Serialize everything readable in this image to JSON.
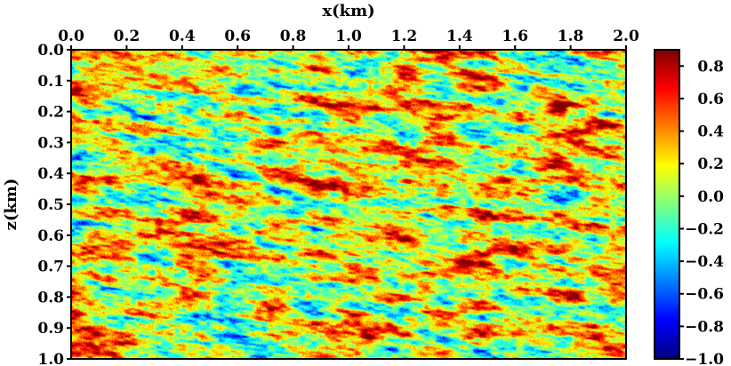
{
  "chart_data": {
    "type": "heatmap",
    "title": "",
    "xlabel": "x(km)",
    "ylabel": "z(km)",
    "x_axis_position": "top",
    "y_axis_inverted": true,
    "xlim": [
      0.0,
      2.0
    ],
    "ylim": [
      0.0,
      1.0
    ],
    "x_ticks": [
      "0.0",
      "0.2",
      "0.4",
      "0.6",
      "0.8",
      "1.0",
      "1.2",
      "1.4",
      "1.6",
      "1.8",
      "2.0"
    ],
    "y_ticks": [
      "0.0",
      "0.1",
      "0.2",
      "0.3",
      "0.4",
      "0.5",
      "0.6",
      "0.7",
      "0.8",
      "0.9",
      "1.0"
    ],
    "grid": false,
    "colormap": "jet",
    "colorbar": {
      "position": "right",
      "range": [
        -1.0,
        0.9
      ],
      "ticks": [
        "0.8",
        "0.6",
        "0.4",
        "0.2",
        "0.0",
        "−0.2",
        "−0.4",
        "−0.6",
        "−0.8",
        "−1.0"
      ]
    },
    "field": {
      "description_of_values": "random medium perturbation, mostly -0.4 to 0.6, elongated streaks dipping gently to the right",
      "dominant_value_range": [
        -0.4,
        0.6
      ]
    }
  }
}
